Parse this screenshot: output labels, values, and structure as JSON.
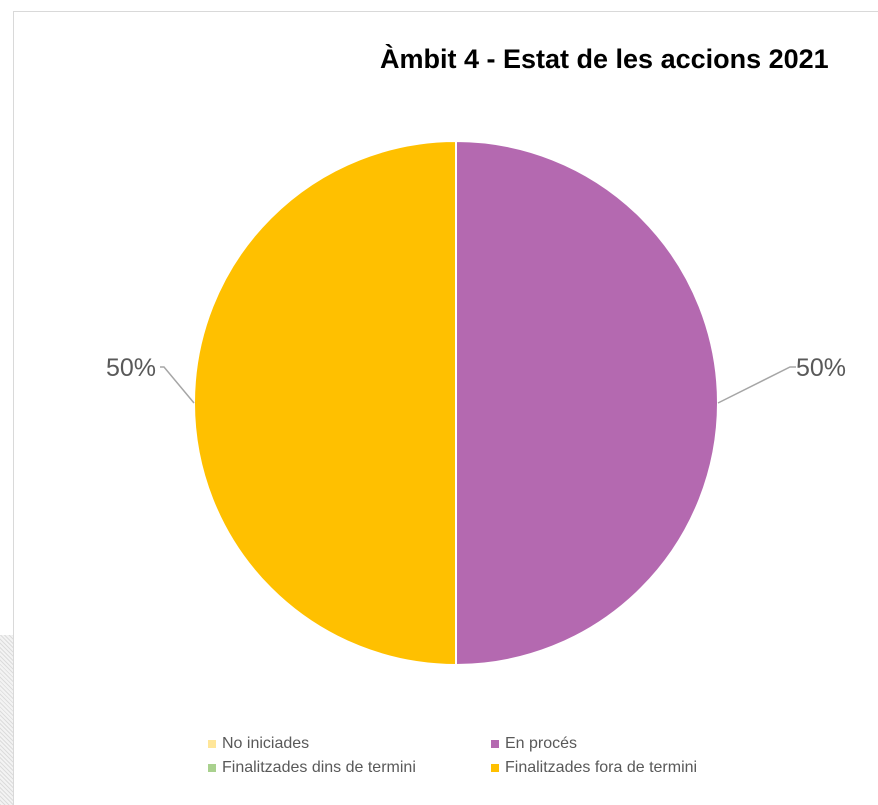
{
  "chart_data": {
    "type": "pie",
    "title": "Àmbit 4 - Estat de les accions 2021",
    "categories": [
      "No iniciades",
      "En procés",
      "Finalitzades dins de termini",
      "Finalitzades fora de termini"
    ],
    "values": [
      0,
      50,
      0,
      50
    ],
    "labels": [
      "",
      "50%",
      "",
      "50%"
    ],
    "colors": [
      "#FFE699",
      "#B469B0",
      "#A9D18E",
      "#FFC000"
    ],
    "legend_position": "bottom",
    "start_angle": "12 o'clock, clockwise"
  }
}
